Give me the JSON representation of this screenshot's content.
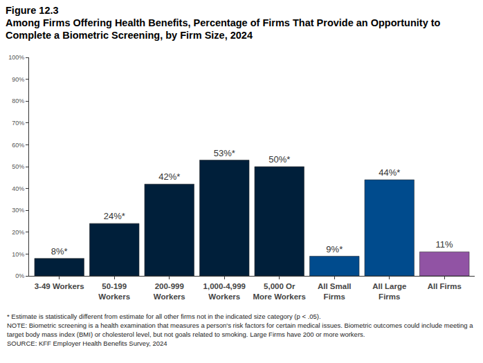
{
  "chart_data": {
    "type": "bar",
    "figure_label": "Figure 12.3",
    "title": "Among Firms Offering Health Benefits, Percentage of Firms That Provide an Opportunity to Complete a Biometric Screening, by Firm Size, 2024",
    "categories": [
      "3-49 Workers",
      "50-199\nWorkers",
      "200-999\nWorkers",
      "1,000-4,999\nWorkers",
      "5,000 Or\nMore Workers",
      "All Small\nFirms",
      "All Large\nFirms",
      "All Firms"
    ],
    "values": [
      8,
      24,
      42,
      53,
      50,
      9,
      44,
      11
    ],
    "value_labels": [
      "8%*",
      "24%*",
      "42%*",
      "53%*",
      "50%*",
      "9%*",
      "44%*",
      "11%"
    ],
    "colors": [
      "#001f3a",
      "#001f3a",
      "#001f3a",
      "#001f3a",
      "#001f3a",
      "#004b8d",
      "#004b8d",
      "#9153a4"
    ],
    "data_labels": true,
    "grid": false,
    "ylim": [
      0,
      100
    ],
    "yticks": [
      {
        "value": 0,
        "label": "0%"
      },
      {
        "value": 10,
        "label": "10%"
      },
      {
        "value": 20,
        "label": "20%"
      },
      {
        "value": 30,
        "label": "30%"
      },
      {
        "value": 40,
        "label": "40%"
      },
      {
        "value": 50,
        "label": "50%"
      },
      {
        "value": 60,
        "label": "60%"
      },
      {
        "value": 70,
        "label": "70%"
      },
      {
        "value": 80,
        "label": "80%"
      },
      {
        "value": 90,
        "label": "90%"
      },
      {
        "value": 100,
        "label": "100%"
      }
    ],
    "notes": [
      "* Estimate is statistically different from estimate for all other firms not in the indicated size category (p < .05).",
      "NOTE: Biometric screening is a health examination that measures a person's risk factors for certain medical issues. Biometric outcomes could include meeting a target body mass index (BMI) or cholesterol level, but not goals related to smoking.  Large Firms have 200 or more workers.",
      "SOURCE: KFF Employer Health Benefits Survey, 2024"
    ]
  }
}
